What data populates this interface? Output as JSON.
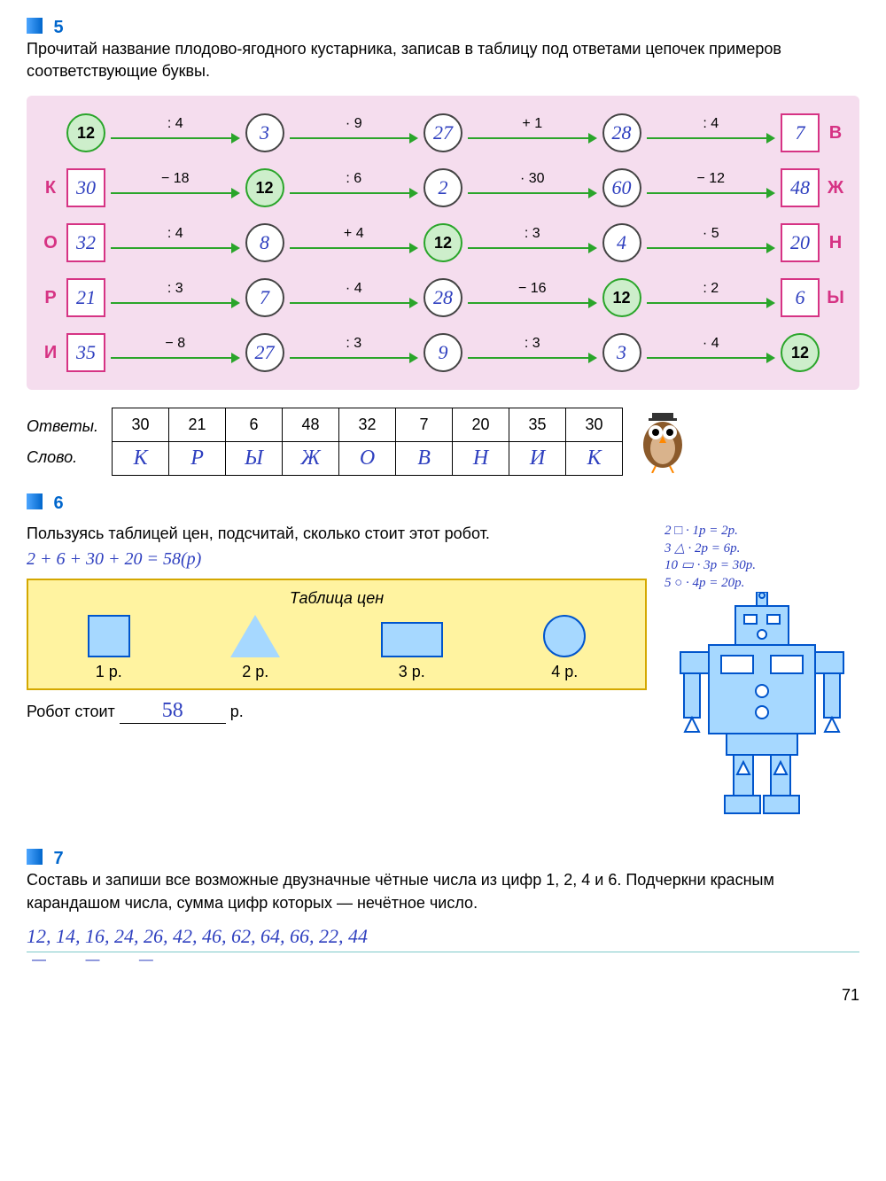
{
  "page_number": "71",
  "ex5": {
    "number": "5",
    "text": "Прочитай название плодово-ягодного кустарника, записав в таблицу под ответами цепочек примеров соответствующие буквы.",
    "chains": [
      {
        "left_label": "",
        "right_label": "В",
        "cells": [
          {
            "type": "green",
            "val": "12"
          },
          {
            "type": "white",
            "val": "3"
          },
          {
            "type": "white",
            "val": "27"
          },
          {
            "type": "white",
            "val": "28"
          },
          {
            "type": "pink",
            "val": "7"
          }
        ],
        "ops": [
          ": 4",
          "· 9",
          "+ 1",
          ": 4"
        ]
      },
      {
        "left_label": "К",
        "right_label": "Ж",
        "cells": [
          {
            "type": "pink",
            "val": "30"
          },
          {
            "type": "green",
            "val": "12"
          },
          {
            "type": "white",
            "val": "2"
          },
          {
            "type": "white",
            "val": "60"
          },
          {
            "type": "pink",
            "val": "48"
          }
        ],
        "ops": [
          "− 18",
          ": 6",
          "· 30",
          "− 12"
        ]
      },
      {
        "left_label": "О",
        "right_label": "Н",
        "cells": [
          {
            "type": "pink",
            "val": "32"
          },
          {
            "type": "white",
            "val": "8"
          },
          {
            "type": "green",
            "val": "12"
          },
          {
            "type": "white",
            "val": "4"
          },
          {
            "type": "pink",
            "val": "20"
          }
        ],
        "ops": [
          ": 4",
          "+ 4",
          ": 3",
          "· 5"
        ]
      },
      {
        "left_label": "Р",
        "right_label": "Ы",
        "cells": [
          {
            "type": "pink",
            "val": "21"
          },
          {
            "type": "white",
            "val": "7"
          },
          {
            "type": "white",
            "val": "28"
          },
          {
            "type": "green",
            "val": "12"
          },
          {
            "type": "pink",
            "val": "6"
          }
        ],
        "ops": [
          ": 3",
          "· 4",
          "− 16",
          ": 2"
        ]
      },
      {
        "left_label": "И",
        "right_label": "",
        "cells": [
          {
            "type": "pink",
            "val": "35"
          },
          {
            "type": "white",
            "val": "27"
          },
          {
            "type": "white",
            "val": "9"
          },
          {
            "type": "white",
            "val": "3"
          },
          {
            "type": "green",
            "val": "12"
          }
        ],
        "ops": [
          "− 8",
          ": 3",
          ": 3",
          "· 4"
        ]
      }
    ],
    "answers_label": "Ответы.",
    "word_label": "Слово.",
    "answers": [
      "30",
      "21",
      "6",
      "48",
      "32",
      "7",
      "20",
      "35",
      "30"
    ],
    "letters": [
      "К",
      "Р",
      "Ы",
      "Ж",
      "О",
      "В",
      "Н",
      "И",
      "К"
    ]
  },
  "ex6": {
    "number": "6",
    "text": "Пользуясь таблицей цен, подсчитай, сколько стоит этот робот.",
    "hand_sum": "2 + 6 + 30 + 20 = 58(р)",
    "table_title": "Таблица цен",
    "prices": [
      "1 р.",
      "2 р.",
      "3 р.",
      "4 р."
    ],
    "result_prefix": "Робот стоит",
    "result_value": "58",
    "result_suffix": "р.",
    "side_calc": [
      "2 □ · 1р = 2р.",
      "3 △ · 2р = 6р.",
      "10 ▭ · 3р = 30р.",
      "5 ○ · 4р = 20р."
    ]
  },
  "ex7": {
    "number": "7",
    "text": "Составь и запиши все возможные двузначные чётные числа из цифр 1, 2, 4 и 6. Подчеркни красным карандашом числа, сумма цифр которых — нечётное число.",
    "answer": "12, 14, 16, 24, 26, 42, 46, 62, 64, 66, 22, 44"
  },
  "colors": {
    "task_num": "#0066cc",
    "chain_bg": "#f5ddee",
    "green_circle_border": "#2aa52a",
    "green_circle_fill": "#cdeecb",
    "pink_box_border": "#d63384",
    "handwriting": "#2e3fbf",
    "price_table_bg": "#fff3a0",
    "shape_fill": "#a6d8ff",
    "shape_border": "#0055cc"
  }
}
